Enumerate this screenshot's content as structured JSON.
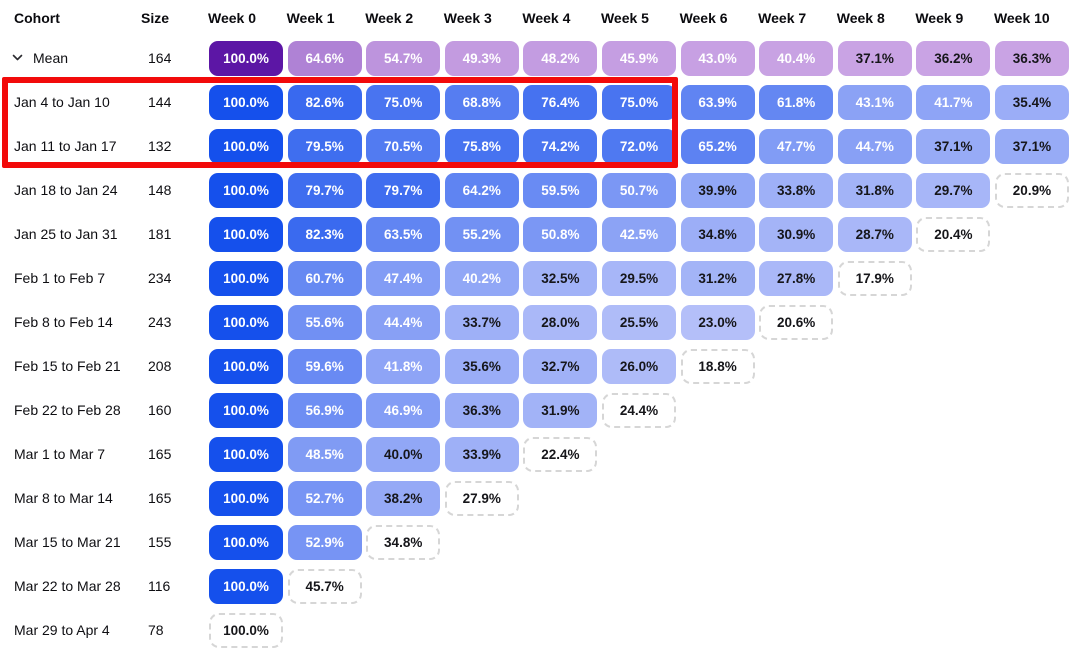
{
  "chart_data": {
    "type": "heatmap",
    "title": "",
    "unit": "%",
    "row_header": "Cohort",
    "size_header": "Size",
    "week_labels": [
      "Week 0",
      "Week 1",
      "Week 2",
      "Week 3",
      "Week 4",
      "Week 5",
      "Week 6",
      "Week 7",
      "Week 8",
      "Week 9",
      "Week 10"
    ],
    "mean_row": {
      "label": "Mean",
      "size": 164,
      "values": [
        100.0,
        64.6,
        54.7,
        49.3,
        48.2,
        45.9,
        43.0,
        40.4,
        37.1,
        36.2,
        36.3
      ]
    },
    "cohorts": [
      {
        "label": "Jan 4 to Jan 10",
        "size": 144,
        "values": [
          100.0,
          82.6,
          75.0,
          68.8,
          76.4,
          75.0,
          63.9,
          61.8,
          43.1,
          41.7,
          35.4
        ],
        "highlighted": true,
        "incomplete_last": false
      },
      {
        "label": "Jan 11 to Jan 17",
        "size": 132,
        "values": [
          100.0,
          79.5,
          70.5,
          75.8,
          74.2,
          72.0,
          65.2,
          47.7,
          44.7,
          37.1,
          37.1
        ],
        "highlighted": true,
        "incomplete_last": false
      },
      {
        "label": "Jan 18 to Jan 24",
        "size": 148,
        "values": [
          100.0,
          79.7,
          79.7,
          64.2,
          59.5,
          50.7,
          39.9,
          33.8,
          31.8,
          29.7,
          20.9
        ],
        "highlighted": false,
        "incomplete_last": true
      },
      {
        "label": "Jan 25 to Jan 31",
        "size": 181,
        "values": [
          100.0,
          82.3,
          63.5,
          55.2,
          50.8,
          42.5,
          34.8,
          30.9,
          28.7,
          20.4
        ],
        "highlighted": false,
        "incomplete_last": true
      },
      {
        "label": "Feb 1 to Feb 7",
        "size": 234,
        "values": [
          100.0,
          60.7,
          47.4,
          40.2,
          32.5,
          29.5,
          31.2,
          27.8,
          17.9
        ],
        "highlighted": false,
        "incomplete_last": true
      },
      {
        "label": "Feb 8 to Feb 14",
        "size": 243,
        "values": [
          100.0,
          55.6,
          44.4,
          33.7,
          28.0,
          25.5,
          23.0,
          20.6
        ],
        "highlighted": false,
        "incomplete_last": true
      },
      {
        "label": "Feb 15 to Feb 21",
        "size": 208,
        "values": [
          100.0,
          59.6,
          41.8,
          35.6,
          32.7,
          26.0,
          18.8
        ],
        "highlighted": false,
        "incomplete_last": true
      },
      {
        "label": "Feb 22 to Feb 28",
        "size": 160,
        "values": [
          100.0,
          56.9,
          46.9,
          36.3,
          31.9,
          24.4
        ],
        "highlighted": false,
        "incomplete_last": true
      },
      {
        "label": "Mar 1 to Mar 7",
        "size": 165,
        "values": [
          100.0,
          48.5,
          40.0,
          33.9,
          22.4
        ],
        "highlighted": false,
        "incomplete_last": true
      },
      {
        "label": "Mar 8 to Mar 14",
        "size": 165,
        "values": [
          100.0,
          52.7,
          38.2,
          27.9
        ],
        "highlighted": false,
        "incomplete_last": true
      },
      {
        "label": "Mar 15 to Mar 21",
        "size": 155,
        "values": [
          100.0,
          52.9,
          34.8
        ],
        "highlighted": false,
        "incomplete_last": true
      },
      {
        "label": "Mar 22 to Mar 28",
        "size": 116,
        "values": [
          100.0,
          45.7
        ],
        "highlighted": false,
        "incomplete_last": true
      },
      {
        "label": "Mar 29 to Apr 4",
        "size": 78,
        "values": [
          100.0
        ],
        "highlighted": false,
        "incomplete_last": true
      }
    ],
    "annotation": {
      "shape": "red-rectangle",
      "color": "#F20A0A",
      "rows_covered": [
        "Jan 4 to Jan 10",
        "Jan 11 to Jan 17"
      ],
      "weeks_covered": [
        "Week 0",
        "Week 1",
        "Week 2",
        "Week 3",
        "Week 4",
        "Week 5"
      ]
    }
  },
  "colors": {
    "mean_scale_high": "#5C16A5",
    "mean_scale_low": "#C9A3E4",
    "cohort_scale_high": "#1550EC",
    "cohort_scale_low": "#C5CBFA",
    "highlight_red": "#F20A0A",
    "incomplete_border": "#D6D6D6",
    "text_dark": "#16161A",
    "text_light": "#FFFFFF"
  }
}
